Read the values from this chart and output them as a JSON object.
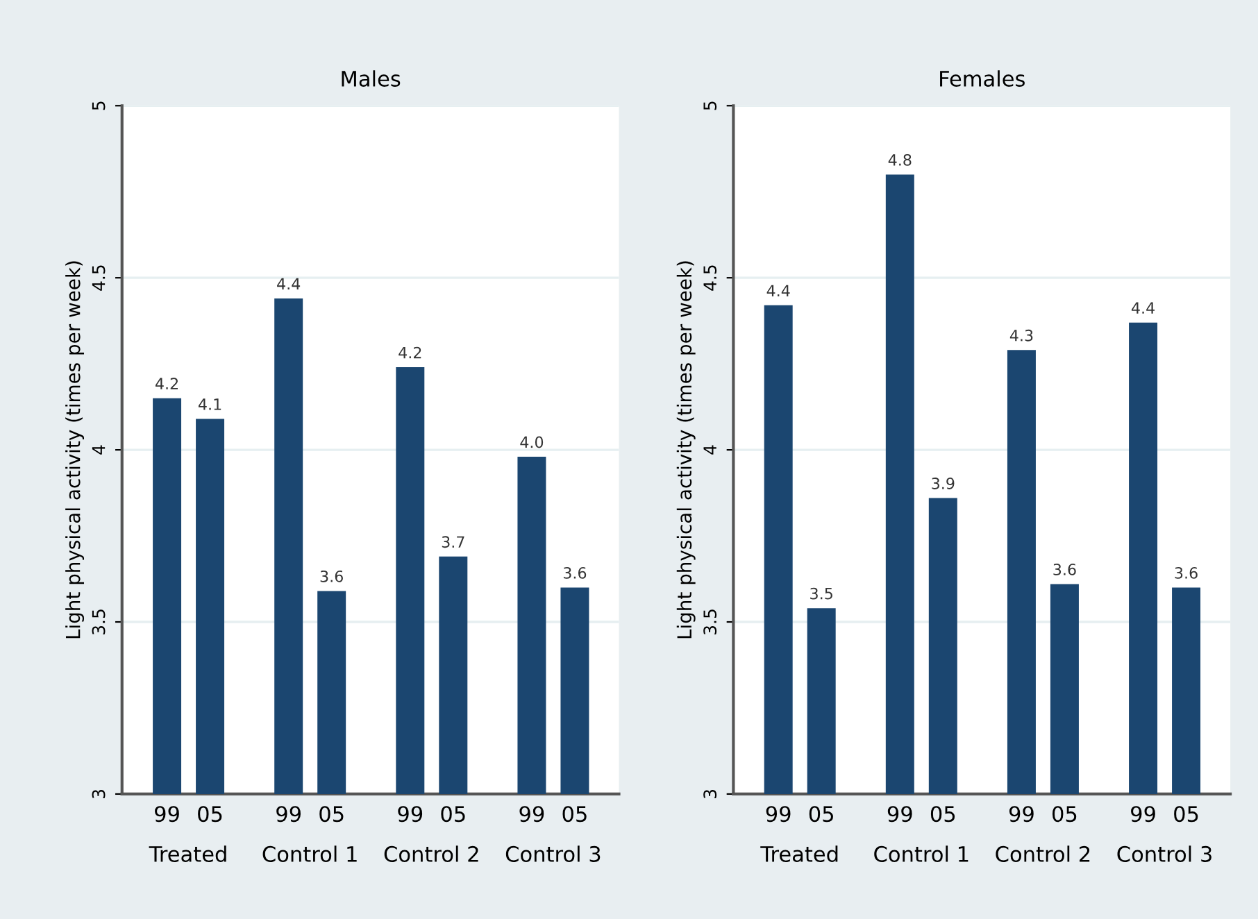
{
  "chart_data": [
    {
      "type": "bar",
      "title": "Males",
      "ylabel": "Light physical activity (times per week)",
      "categories": [
        "Treated",
        "Control 1",
        "Control 2",
        "Control 3"
      ],
      "series": [
        {
          "name": "99",
          "color": "#1b4670",
          "values": [
            4.15,
            4.44,
            4.24,
            3.98
          ],
          "value_labels": [
            "4.2",
            "4.4",
            "4.2",
            "4.0"
          ]
        },
        {
          "name": "05",
          "color": "#1b4670",
          "values": [
            4.09,
            3.59,
            3.69,
            3.6
          ],
          "value_labels": [
            "4.1",
            "3.6",
            "3.7",
            "3.6"
          ]
        }
      ],
      "ylim": [
        3,
        5
      ],
      "yticks": [
        3,
        3.5,
        4,
        4.5,
        5
      ],
      "grid": "y",
      "legend": false
    },
    {
      "type": "bar",
      "title": "Females",
      "ylabel": "Light physical activity (times per week)",
      "categories": [
        "Treated",
        "Control 1",
        "Control 2",
        "Control 3"
      ],
      "series": [
        {
          "name": "99",
          "color": "#1b4670",
          "values": [
            4.42,
            4.8,
            4.29,
            4.37
          ],
          "value_labels": [
            "4.4",
            "4.8",
            "4.3",
            "4.4"
          ]
        },
        {
          "name": "05",
          "color": "#1b4670",
          "values": [
            3.54,
            3.86,
            3.61,
            3.6
          ],
          "value_labels": [
            "3.5",
            "3.9",
            "3.6",
            "3.6"
          ]
        }
      ],
      "ylim": [
        3,
        5
      ],
      "yticks": [
        3,
        3.5,
        4,
        4.5,
        5
      ],
      "grid": "y",
      "legend": false
    }
  ]
}
